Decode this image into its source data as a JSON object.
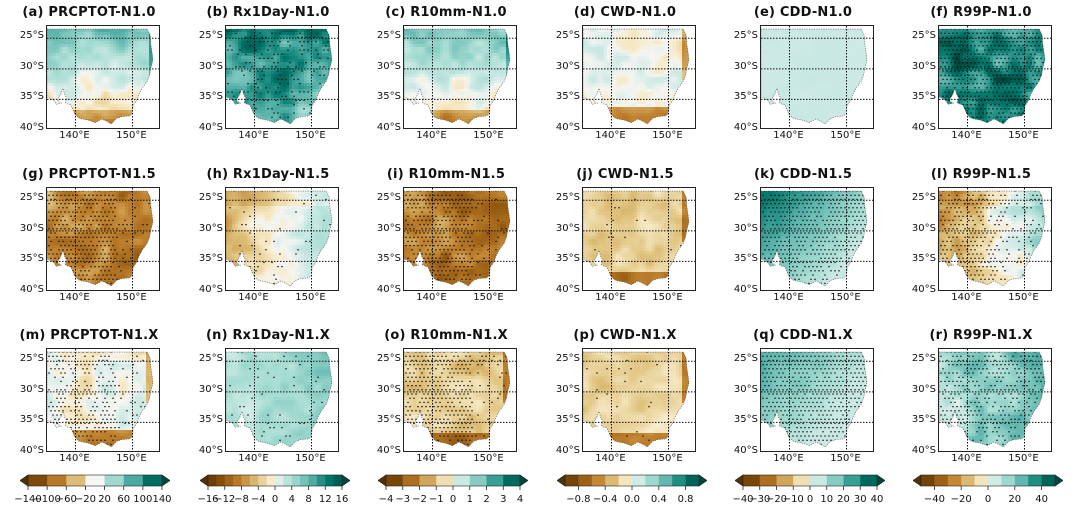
{
  "chart_data": {
    "type": "heatmap",
    "description": "18 map panels of southeastern Australia (lon 135-155E, lat 23-40S) showing changes in extreme precipitation indices, with stippling for significance",
    "lat_ticks": [
      "25°S",
      "30°S",
      "35°S",
      "40°S"
    ],
    "lon_ticks": [
      "140°E",
      "150°E"
    ],
    "lat_range": [
      -40,
      -23
    ],
    "lon_range": [
      135,
      155
    ],
    "panels": [
      {
        "label": "(a) PRCPTOT-N1.0",
        "index": "PRCPTOT",
        "scenario": "N1.0",
        "pattern": "wet-north-dry-south",
        "intensity": 0.55,
        "stipple": 0.0
      },
      {
        "label": "(b) Rx1Day-N1.0",
        "index": "Rx1Day",
        "scenario": "N1.0",
        "pattern": "wet-strong",
        "intensity": 0.8,
        "stipple": 0.35
      },
      {
        "label": "(c) R10mm-N1.0",
        "index": "R10mm",
        "scenario": "N1.0",
        "pattern": "wet-north-dry-south",
        "intensity": 0.45,
        "stipple": 0.0
      },
      {
        "label": "(d) CWD-N1.0",
        "index": "CWD",
        "scenario": "N1.0",
        "pattern": "neutral-dry-south",
        "intensity": 0.35,
        "stipple": 0.0
      },
      {
        "label": "(e) CDD-N1.0",
        "index": "CDD",
        "scenario": "N1.0",
        "pattern": "uniform-light-wet",
        "intensity": 0.15,
        "stipple": 0.0
      },
      {
        "label": "(f) R99P-N1.0",
        "index": "R99P",
        "scenario": "N1.0",
        "pattern": "wet-very-strong",
        "intensity": 0.95,
        "stipple": 0.9
      },
      {
        "label": "(g) PRCPTOT-N1.5",
        "index": "PRCPTOT",
        "scenario": "N1.5",
        "pattern": "dry-strong",
        "intensity": 0.8,
        "stipple": 0.7
      },
      {
        "label": "(h) Rx1Day-N1.5",
        "index": "Rx1Day",
        "scenario": "N1.5",
        "pattern": "dry-west-wet-east",
        "intensity": 0.4,
        "stipple": 0.1
      },
      {
        "label": "(i) R10mm-N1.5",
        "index": "R10mm",
        "scenario": "N1.5",
        "pattern": "dry-strong",
        "intensity": 0.85,
        "stipple": 0.7
      },
      {
        "label": "(j) CWD-N1.5",
        "index": "CWD",
        "scenario": "N1.5",
        "pattern": "dry-moderate",
        "intensity": 0.5,
        "stipple": 0.05
      },
      {
        "label": "(k) CDD-N1.5",
        "index": "CDD",
        "scenario": "N1.5",
        "pattern": "wet-northwest",
        "intensity": 0.75,
        "stipple": 0.75
      },
      {
        "label": "(l) R99P-N1.5",
        "index": "R99P",
        "scenario": "N1.5",
        "pattern": "dry-west-wet-east",
        "intensity": 0.55,
        "stipple": 0.6
      },
      {
        "label": "(m) PRCPTOT-N1.X",
        "index": "PRCPTOT",
        "scenario": "N1.X",
        "pattern": "neutral-dry-south",
        "intensity": 0.45,
        "stipple": 0.55
      },
      {
        "label": "(n) Rx1Day-N1.X",
        "index": "Rx1Day",
        "scenario": "N1.X",
        "pattern": "wet-moderate",
        "intensity": 0.5,
        "stipple": 0.1
      },
      {
        "label": "(o) R10mm-N1.X",
        "index": "R10mm",
        "scenario": "N1.X",
        "pattern": "dry-moderate",
        "intensity": 0.55,
        "stipple": 0.7
      },
      {
        "label": "(p) CWD-N1.X",
        "index": "CWD",
        "scenario": "N1.X",
        "pattern": "dry-moderate",
        "intensity": 0.45,
        "stipple": 0.05
      },
      {
        "label": "(q) CDD-N1.X",
        "index": "CDD",
        "scenario": "N1.X",
        "pattern": "wet-northwest",
        "intensity": 0.5,
        "stipple": 0.85
      },
      {
        "label": "(r) R99P-N1.X",
        "index": "R99P",
        "scenario": "N1.X",
        "pattern": "wet-east",
        "intensity": 0.7,
        "stipple": 0.6
      }
    ],
    "colorbars": [
      {
        "index": "PRCPTOT",
        "ticks": [
          "−140",
          "−100",
          "−60",
          "−20",
          "20",
          "60",
          "100",
          "140"
        ],
        "levels": [
          -140,
          -100,
          -60,
          -20,
          20,
          60,
          100,
          140
        ],
        "extend": "both"
      },
      {
        "index": "Rx1Day",
        "ticks": [
          "−16",
          "−12",
          "−8",
          "−4",
          "0",
          "4",
          "8",
          "12",
          "16"
        ],
        "levels": [
          -16,
          -14,
          -12,
          -10,
          -8,
          -6,
          -4,
          -2,
          0,
          2,
          4,
          6,
          8,
          10,
          12,
          14,
          16
        ],
        "extend": "both"
      },
      {
        "index": "R10mm",
        "ticks": [
          "−4",
          "−3",
          "−2",
          "−1",
          "0",
          "1",
          "2",
          "3",
          "4"
        ],
        "levels": [
          -4,
          -3,
          -2,
          -1,
          0,
          1,
          2,
          3,
          4
        ],
        "extend": "both"
      },
      {
        "index": "CWD",
        "ticks": [
          "−0.8",
          "−0.4",
          "0.0",
          "0.4",
          "0.8"
        ],
        "levels": [
          -1.0,
          -0.8,
          -0.6,
          -0.4,
          -0.2,
          0.0,
          0.2,
          0.4,
          0.6,
          0.8,
          1.0
        ],
        "extend": "both"
      },
      {
        "index": "CDD",
        "ticks": [
          "−40",
          "−30",
          "−20",
          "−10",
          "0",
          "10",
          "20",
          "30",
          "40"
        ],
        "levels": [
          -40,
          -30,
          -20,
          -10,
          0,
          10,
          20,
          30,
          40
        ],
        "extend": "both"
      },
      {
        "index": "R99P",
        "ticks": [
          "−40",
          "−20",
          "0",
          "20",
          "40"
        ],
        "levels": [
          -50,
          -40,
          -30,
          -20,
          -10,
          0,
          10,
          20,
          30,
          40,
          50
        ],
        "extend": "both"
      }
    ],
    "colormap": "BrBG",
    "colors": {
      "dry_dark": "#5e3a0c",
      "dry_mid": "#b8782c",
      "dry_light": "#ecd39a",
      "neutral": "#f4f4f1",
      "wet_light": "#a5ddd4",
      "wet_mid": "#3d9b8e",
      "wet_dark": "#005c4e"
    }
  }
}
